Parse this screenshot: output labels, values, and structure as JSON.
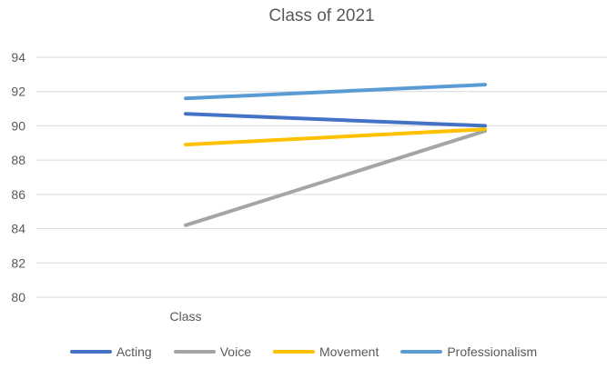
{
  "chart_data": {
    "type": "line",
    "title": "Class of 2021",
    "categories": [
      "Class",
      ""
    ],
    "series": [
      {
        "name": "Acting",
        "color": "#4472C4",
        "values": [
          90.7,
          90.0
        ]
      },
      {
        "name": "Voice",
        "color": "#A5A5A5",
        "values": [
          84.2,
          89.7
        ]
      },
      {
        "name": "Movement",
        "color": "#FFC000",
        "values": [
          88.9,
          89.8
        ]
      },
      {
        "name": "Professionalism",
        "color": "#5B9BD5",
        "values": [
          91.6,
          92.4
        ]
      }
    ],
    "xlabel": "",
    "ylabel": "",
    "ylim": [
      80,
      94
    ],
    "y_ticks": [
      94,
      92,
      90,
      88,
      86,
      84,
      82,
      80
    ],
    "grid": true,
    "legend_position": "bottom",
    "colors": {
      "gridline": "#D9D9D9",
      "text": "#595959",
      "background": "#FFFFFF"
    }
  }
}
